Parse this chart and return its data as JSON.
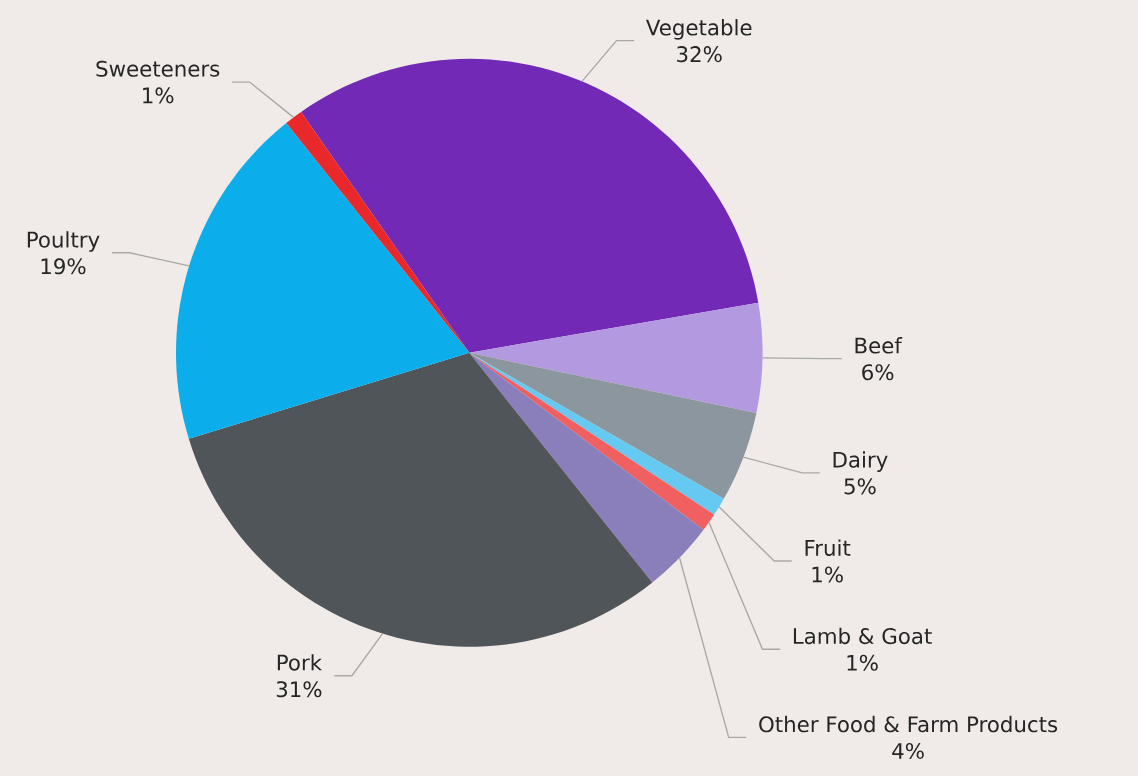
{
  "chart_data": {
    "type": "pie",
    "categories": [
      "Vegetable",
      "Beef",
      "Dairy",
      "Fruit",
      "Lamb & Goat",
      "Other Food & Farm Products",
      "Pork",
      "Poultry",
      "Sweeteners"
    ],
    "values": [
      32,
      6,
      5,
      1,
      1,
      4,
      31,
      19,
      1
    ],
    "value_labels": [
      "32%",
      "6%",
      "5%",
      "1%",
      "1%",
      "4%",
      "31%",
      "19%",
      "1%"
    ],
    "colors": [
      "#7229b5",
      "#b399e0",
      "#8c969e",
      "#66c9f2",
      "#f06060",
      "#8a7fbb",
      "#50555a",
      "#0baeea",
      "#e8282a"
    ]
  }
}
